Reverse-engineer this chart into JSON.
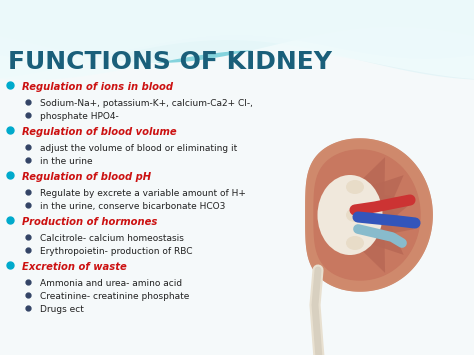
{
  "title": "FUNCTIONS OF KIDNEY",
  "title_color": "#1a5f7a",
  "title_fontsize": 18,
  "bg_color": "#f5f9fa",
  "header_color": "#cc1111",
  "bullet_color": "#00aacc",
  "sub_bullet_color": "#222222",
  "wave_color1": "#a8dde8",
  "wave_color2": "#6ec8d8",
  "wave_color3": "#e8f6f8",
  "main_bullets": [
    {
      "text": "Regulation of ions in blood",
      "subs": [
        "Sodium-Na+, potassium-K+, calcium-Ca2+ Cl-,",
        "phosphate HPO4-"
      ]
    },
    {
      "text": "Regulation of blood volume",
      "subs": [
        "adjust the volume of blood or eliminating it",
        "in the urine"
      ]
    },
    {
      "text": "Regulation of blood pH",
      "subs": [
        "Regulate by excrete a variable amount of H+",
        "in the urine, conserve bicarbonate HCO3"
      ]
    },
    {
      "text": "Production of hormones",
      "subs": [
        "Calcitrole- calcium homeostasis",
        "Erythropoietin- production of RBC"
      ]
    },
    {
      "text": "Excretion of waste",
      "subs": [
        "Ammonia and urea- amino acid",
        "Creatinine- creatinine phosphate",
        "Drugs ect"
      ]
    }
  ]
}
